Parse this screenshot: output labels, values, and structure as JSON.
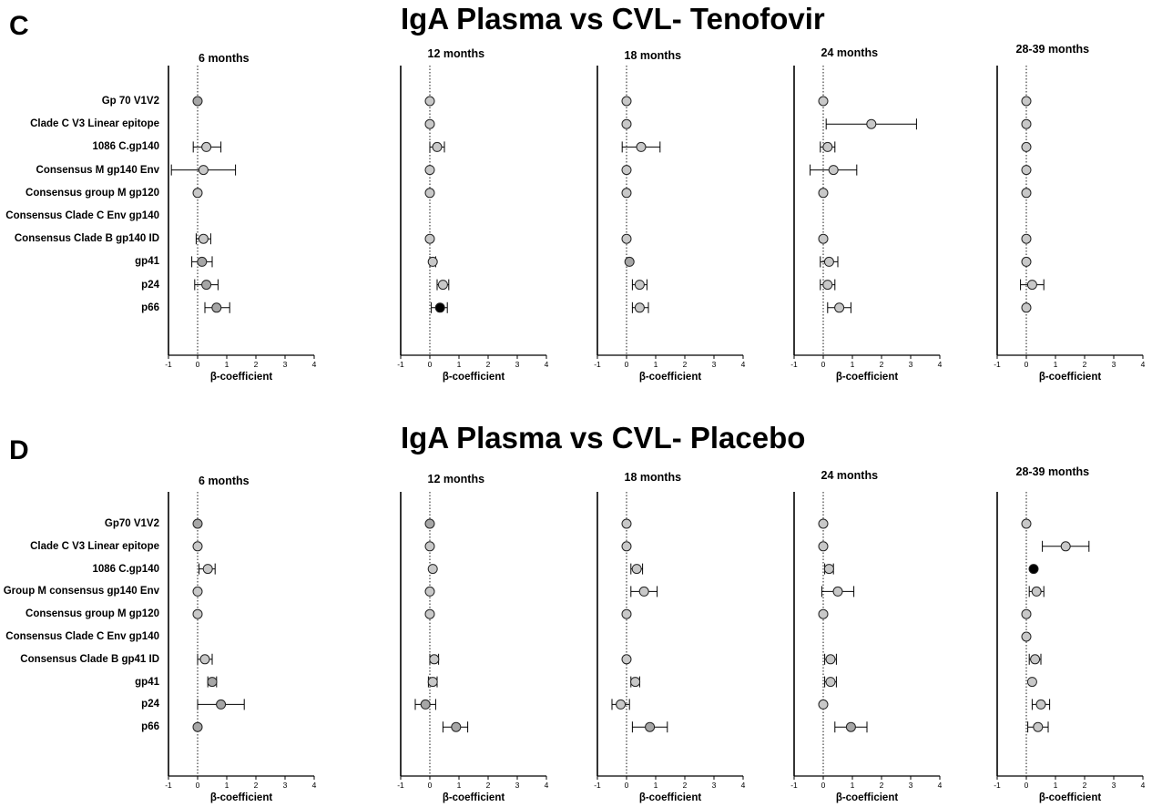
{
  "chart_data": [
    {
      "panel": "C",
      "title": "IgA Plasma vs CVL- Tenofovir",
      "type": "scatter",
      "xlabel": "β-coefficient",
      "xlim": [
        -1,
        4
      ],
      "xticks": [
        -1,
        0,
        1,
        2,
        3,
        4
      ],
      "categories": [
        "Gp 70 V1V2",
        "Clade C V3 Linear epitope",
        "1086 C.gp140",
        "Consensus M gp140 Env",
        "Consensus group M gp120",
        "Consensus Clade C Env gp140",
        "Consensus Clade B gp140 ID",
        "gp41",
        "p24",
        "p66"
      ],
      "subplots": [
        {
          "title": "6 months",
          "points": [
            {
              "index": 0,
              "value": 0.0,
              "lo": null,
              "hi": null,
              "color": "#a6a6a6"
            },
            {
              "index": 2,
              "value": 0.3,
              "lo": -0.15,
              "hi": 0.8,
              "color": "#c8c8c8"
            },
            {
              "index": 3,
              "value": 0.2,
              "lo": -0.9,
              "hi": 1.3,
              "color": "#c8c8c8"
            },
            {
              "index": 4,
              "value": 0.0,
              "lo": null,
              "hi": null,
              "color": "#c8c8c8"
            },
            {
              "index": 6,
              "value": 0.2,
              "lo": -0.05,
              "hi": 0.45,
              "color": "#c8c8c8"
            },
            {
              "index": 7,
              "value": 0.15,
              "lo": -0.2,
              "hi": 0.5,
              "color": "#a6a6a6"
            },
            {
              "index": 8,
              "value": 0.3,
              "lo": -0.1,
              "hi": 0.7,
              "color": "#a6a6a6"
            },
            {
              "index": 9,
              "value": 0.65,
              "lo": 0.25,
              "hi": 1.1,
              "color": "#a6a6a6"
            }
          ]
        },
        {
          "title": "12 months",
          "points": [
            {
              "index": 0,
              "value": 0.0,
              "lo": null,
              "hi": null,
              "color": "#c8c8c8"
            },
            {
              "index": 1,
              "value": 0.0,
              "lo": null,
              "hi": null,
              "color": "#c8c8c8"
            },
            {
              "index": 2,
              "value": 0.25,
              "lo": 0.0,
              "hi": 0.5,
              "color": "#c8c8c8"
            },
            {
              "index": 3,
              "value": 0.0,
              "lo": null,
              "hi": null,
              "color": "#c8c8c8"
            },
            {
              "index": 4,
              "value": 0.0,
              "lo": null,
              "hi": null,
              "color": "#c8c8c8"
            },
            {
              "index": 6,
              "value": 0.0,
              "lo": null,
              "hi": null,
              "color": "#c8c8c8"
            },
            {
              "index": 7,
              "value": 0.1,
              "lo": 0.0,
              "hi": 0.2,
              "color": "#c8c8c8"
            },
            {
              "index": 8,
              "value": 0.45,
              "lo": 0.25,
              "hi": 0.65,
              "color": "#c8c8c8"
            },
            {
              "index": 9,
              "value": 0.35,
              "lo": 0.05,
              "hi": 0.6,
              "color": "#000000"
            }
          ]
        },
        {
          "title": "18 months",
          "points": [
            {
              "index": 0,
              "value": 0.0,
              "lo": null,
              "hi": null,
              "color": "#c8c8c8"
            },
            {
              "index": 1,
              "value": 0.0,
              "lo": null,
              "hi": null,
              "color": "#c8c8c8"
            },
            {
              "index": 2,
              "value": 0.5,
              "lo": -0.15,
              "hi": 1.15,
              "color": "#c8c8c8"
            },
            {
              "index": 3,
              "value": 0.0,
              "lo": null,
              "hi": null,
              "color": "#c8c8c8"
            },
            {
              "index": 4,
              "value": 0.0,
              "lo": null,
              "hi": null,
              "color": "#c8c8c8"
            },
            {
              "index": 6,
              "value": 0.0,
              "lo": null,
              "hi": null,
              "color": "#c8c8c8"
            },
            {
              "index": 7,
              "value": 0.1,
              "lo": null,
              "hi": null,
              "color": "#a6a6a6"
            },
            {
              "index": 8,
              "value": 0.45,
              "lo": 0.2,
              "hi": 0.7,
              "color": "#c8c8c8"
            },
            {
              "index": 9,
              "value": 0.45,
              "lo": 0.2,
              "hi": 0.75,
              "color": "#c8c8c8"
            }
          ]
        },
        {
          "title": "24 months",
          "points": [
            {
              "index": 0,
              "value": 0.0,
              "lo": null,
              "hi": null,
              "color": "#c8c8c8"
            },
            {
              "index": 1,
              "value": 1.65,
              "lo": 0.1,
              "hi": 3.2,
              "color": "#c8c8c8"
            },
            {
              "index": 2,
              "value": 0.15,
              "lo": -0.1,
              "hi": 0.4,
              "color": "#c8c8c8"
            },
            {
              "index": 3,
              "value": 0.35,
              "lo": -0.45,
              "hi": 1.15,
              "color": "#c8c8c8"
            },
            {
              "index": 4,
              "value": 0.0,
              "lo": null,
              "hi": null,
              "color": "#c8c8c8"
            },
            {
              "index": 6,
              "value": 0.0,
              "lo": null,
              "hi": null,
              "color": "#c8c8c8"
            },
            {
              "index": 7,
              "value": 0.2,
              "lo": -0.1,
              "hi": 0.5,
              "color": "#c8c8c8"
            },
            {
              "index": 8,
              "value": 0.15,
              "lo": -0.1,
              "hi": 0.4,
              "color": "#c8c8c8"
            },
            {
              "index": 9,
              "value": 0.55,
              "lo": 0.15,
              "hi": 0.95,
              "color": "#c8c8c8"
            }
          ]
        },
        {
          "title": "28-39 months",
          "points": [
            {
              "index": 0,
              "value": 0.0,
              "lo": null,
              "hi": null,
              "color": "#c8c8c8"
            },
            {
              "index": 1,
              "value": 0.0,
              "lo": null,
              "hi": null,
              "color": "#c8c8c8"
            },
            {
              "index": 2,
              "value": 0.0,
              "lo": null,
              "hi": null,
              "color": "#c8c8c8"
            },
            {
              "index": 3,
              "value": 0.0,
              "lo": null,
              "hi": null,
              "color": "#c8c8c8"
            },
            {
              "index": 4,
              "value": 0.0,
              "lo": null,
              "hi": null,
              "color": "#c8c8c8"
            },
            {
              "index": 6,
              "value": 0.0,
              "lo": null,
              "hi": null,
              "color": "#c8c8c8"
            },
            {
              "index": 7,
              "value": 0.0,
              "lo": null,
              "hi": null,
              "color": "#c8c8c8"
            },
            {
              "index": 8,
              "value": 0.2,
              "lo": -0.2,
              "hi": 0.6,
              "color": "#c8c8c8"
            },
            {
              "index": 9,
              "value": 0.0,
              "lo": null,
              "hi": null,
              "color": "#c8c8c8"
            }
          ]
        }
      ]
    },
    {
      "panel": "D",
      "title": "IgA Plasma vs CVL- Placebo",
      "type": "scatter",
      "xlabel": "β-coefficient",
      "xlim": [
        -1,
        4
      ],
      "xticks": [
        -1,
        0,
        1,
        2,
        3,
        4
      ],
      "categories": [
        "Gp70 V1V2",
        "Clade C V3 Linear epitope",
        "1086 C.gp140",
        "Group M consensus gp140 Env",
        "Consensus group M gp120",
        "Consensus Clade C Env gp140",
        "Consensus  Clade B gp41 ID",
        "gp41",
        "p24",
        "p66"
      ],
      "subplots": [
        {
          "title": "6 months",
          "points": [
            {
              "index": 0,
              "value": 0.0,
              "lo": null,
              "hi": null,
              "color": "#a6a6a6"
            },
            {
              "index": 1,
              "value": 0.0,
              "lo": null,
              "hi": null,
              "color": "#c8c8c8"
            },
            {
              "index": 2,
              "value": 0.35,
              "lo": 0.05,
              "hi": 0.6,
              "color": "#c8c8c8"
            },
            {
              "index": 3,
              "value": 0.0,
              "lo": null,
              "hi": null,
              "color": "#c8c8c8"
            },
            {
              "index": 4,
              "value": 0.0,
              "lo": null,
              "hi": null,
              "color": "#c8c8c8"
            },
            {
              "index": 6,
              "value": 0.25,
              "lo": 0.0,
              "hi": 0.5,
              "color": "#c8c8c8"
            },
            {
              "index": 7,
              "value": 0.5,
              "lo": 0.35,
              "hi": 0.65,
              "color": "#a6a6a6"
            },
            {
              "index": 8,
              "value": 0.8,
              "lo": 0.0,
              "hi": 1.6,
              "color": "#a6a6a6"
            },
            {
              "index": 9,
              "value": 0.0,
              "lo": null,
              "hi": null,
              "color": "#a6a6a6"
            }
          ]
        },
        {
          "title": "12 months",
          "points": [
            {
              "index": 0,
              "value": 0.0,
              "lo": null,
              "hi": null,
              "color": "#a6a6a6"
            },
            {
              "index": 1,
              "value": 0.0,
              "lo": null,
              "hi": null,
              "color": "#c8c8c8"
            },
            {
              "index": 2,
              "value": 0.1,
              "lo": null,
              "hi": null,
              "color": "#c8c8c8"
            },
            {
              "index": 3,
              "value": 0.0,
              "lo": null,
              "hi": null,
              "color": "#c8c8c8"
            },
            {
              "index": 4,
              "value": 0.0,
              "lo": null,
              "hi": null,
              "color": "#c8c8c8"
            },
            {
              "index": 6,
              "value": 0.15,
              "lo": 0.0,
              "hi": 0.3,
              "color": "#c8c8c8"
            },
            {
              "index": 7,
              "value": 0.1,
              "lo": -0.05,
              "hi": 0.25,
              "color": "#c8c8c8"
            },
            {
              "index": 8,
              "value": -0.15,
              "lo": -0.5,
              "hi": 0.2,
              "color": "#a6a6a6"
            },
            {
              "index": 9,
              "value": 0.9,
              "lo": 0.45,
              "hi": 1.3,
              "color": "#a6a6a6"
            }
          ]
        },
        {
          "title": "18 months",
          "points": [
            {
              "index": 0,
              "value": 0.0,
              "lo": null,
              "hi": null,
              "color": "#c8c8c8"
            },
            {
              "index": 1,
              "value": 0.0,
              "lo": null,
              "hi": null,
              "color": "#c8c8c8"
            },
            {
              "index": 2,
              "value": 0.35,
              "lo": 0.15,
              "hi": 0.55,
              "color": "#c8c8c8"
            },
            {
              "index": 3,
              "value": 0.6,
              "lo": 0.15,
              "hi": 1.05,
              "color": "#c8c8c8"
            },
            {
              "index": 4,
              "value": 0.0,
              "lo": null,
              "hi": null,
              "color": "#c8c8c8"
            },
            {
              "index": 6,
              "value": 0.0,
              "lo": null,
              "hi": null,
              "color": "#c8c8c8"
            },
            {
              "index": 7,
              "value": 0.3,
              "lo": 0.15,
              "hi": 0.45,
              "color": "#c8c8c8"
            },
            {
              "index": 8,
              "value": -0.2,
              "lo": -0.5,
              "hi": 0.1,
              "color": "#c8c8c8"
            },
            {
              "index": 9,
              "value": 0.8,
              "lo": 0.2,
              "hi": 1.4,
              "color": "#a6a6a6"
            }
          ]
        },
        {
          "title": "24 months",
          "points": [
            {
              "index": 0,
              "value": 0.0,
              "lo": null,
              "hi": null,
              "color": "#c8c8c8"
            },
            {
              "index": 1,
              "value": 0.0,
              "lo": null,
              "hi": null,
              "color": "#c8c8c8"
            },
            {
              "index": 2,
              "value": 0.2,
              "lo": 0.05,
              "hi": 0.35,
              "color": "#c8c8c8"
            },
            {
              "index": 3,
              "value": 0.5,
              "lo": -0.05,
              "hi": 1.05,
              "color": "#c8c8c8"
            },
            {
              "index": 4,
              "value": 0.0,
              "lo": null,
              "hi": null,
              "color": "#c8c8c8"
            },
            {
              "index": 6,
              "value": 0.25,
              "lo": 0.05,
              "hi": 0.45,
              "color": "#c8c8c8"
            },
            {
              "index": 7,
              "value": 0.25,
              "lo": 0.05,
              "hi": 0.45,
              "color": "#c8c8c8"
            },
            {
              "index": 8,
              "value": 0.0,
              "lo": null,
              "hi": null,
              "color": "#c8c8c8"
            },
            {
              "index": 9,
              "value": 0.95,
              "lo": 0.4,
              "hi": 1.5,
              "color": "#a6a6a6"
            }
          ]
        },
        {
          "title": "28-39 months",
          "points": [
            {
              "index": 0,
              "value": 0.0,
              "lo": null,
              "hi": null,
              "color": "#c8c8c8"
            },
            {
              "index": 1,
              "value": 1.35,
              "lo": 0.55,
              "hi": 2.15,
              "color": "#c8c8c8"
            },
            {
              "index": 2,
              "value": 0.25,
              "lo": null,
              "hi": null,
              "color": "#000000"
            },
            {
              "index": 3,
              "value": 0.35,
              "lo": 0.1,
              "hi": 0.6,
              "color": "#c8c8c8"
            },
            {
              "index": 4,
              "value": 0.0,
              "lo": null,
              "hi": null,
              "color": "#c8c8c8"
            },
            {
              "index": 5,
              "value": 0.0,
              "lo": null,
              "hi": null,
              "color": "#c8c8c8"
            },
            {
              "index": 6,
              "value": 0.3,
              "lo": 0.1,
              "hi": 0.5,
              "color": "#c8c8c8"
            },
            {
              "index": 7,
              "value": 0.2,
              "lo": null,
              "hi": null,
              "color": "#c8c8c8"
            },
            {
              "index": 8,
              "value": 0.5,
              "lo": 0.2,
              "hi": 0.8,
              "color": "#c8c8c8"
            },
            {
              "index": 9,
              "value": 0.4,
              "lo": 0.05,
              "hi": 0.75,
              "color": "#c8c8c8"
            }
          ]
        }
      ]
    }
  ]
}
